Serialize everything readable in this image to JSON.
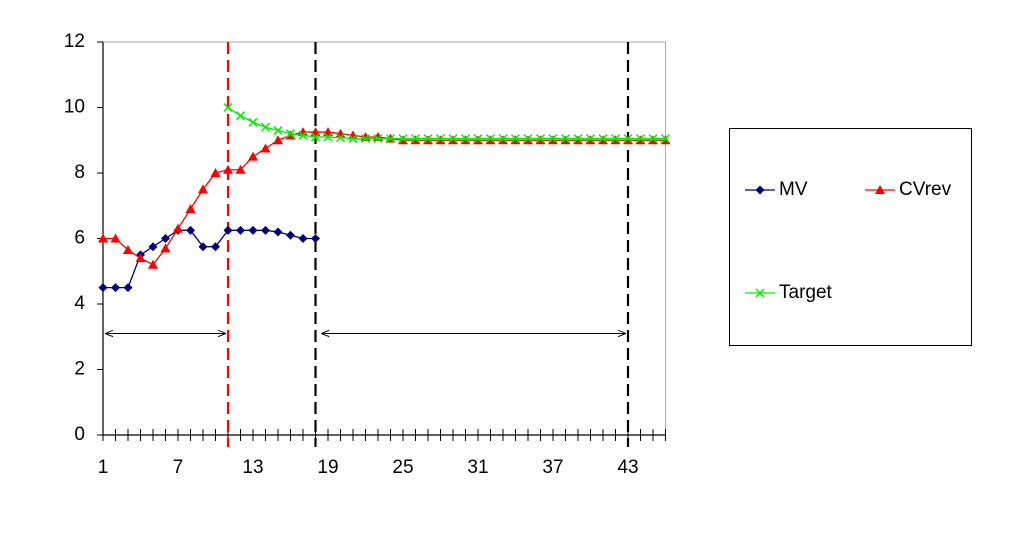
{
  "chart_data": {
    "type": "line",
    "x": [
      1,
      2,
      3,
      4,
      5,
      6,
      7,
      8,
      9,
      10,
      11,
      12,
      13,
      14,
      15,
      16,
      17,
      18,
      19,
      20,
      21,
      22,
      23,
      24,
      25,
      26,
      27,
      28,
      29,
      30,
      31,
      32,
      33,
      34,
      35,
      36,
      37,
      38,
      39,
      40,
      41,
      42,
      43,
      44,
      45,
      46
    ],
    "xlim": [
      1,
      46
    ],
    "xticks": [
      1,
      7,
      13,
      19,
      25,
      31,
      37,
      43
    ],
    "ylim": [
      0,
      12
    ],
    "yticks": [
      0,
      2,
      4,
      6,
      8,
      10,
      12
    ],
    "series": [
      {
        "name": "MV",
        "color": "#000080",
        "marker": "diamond",
        "values": [
          4.5,
          4.5,
          4.5,
          5.5,
          5.75,
          6.0,
          6.25,
          6.25,
          5.75,
          5.75,
          6.25,
          6.25,
          6.25,
          6.25,
          6.2,
          6.1,
          6.0,
          6.0,
          null,
          null,
          null,
          null,
          null,
          null,
          null,
          null,
          null,
          null,
          null,
          null,
          null,
          null,
          null,
          null,
          null,
          null,
          null,
          null,
          null,
          null,
          null,
          null,
          null,
          null,
          null,
          null
        ]
      },
      {
        "name": "CVrev",
        "color": "#ff0000",
        "marker": "triangle",
        "values": [
          6.0,
          6.0,
          5.65,
          5.4,
          5.2,
          5.7,
          6.3,
          6.9,
          7.5,
          8.0,
          8.1,
          8.1,
          8.5,
          8.75,
          9.0,
          9.15,
          9.25,
          9.25,
          9.25,
          9.2,
          9.15,
          9.1,
          9.1,
          9.05,
          9.0,
          9.0,
          9.0,
          9.0,
          9.0,
          9.0,
          9.0,
          9.0,
          9.0,
          9.0,
          9.0,
          9.0,
          9.0,
          9.0,
          9.0,
          9.0,
          9.0,
          9.0,
          9.0,
          9.0,
          9.0,
          9.0
        ]
      },
      {
        "name": "Target",
        "color": "#00ee00",
        "marker": "x",
        "values": [
          null,
          null,
          null,
          null,
          null,
          null,
          null,
          null,
          null,
          null,
          10.0,
          9.75,
          9.55,
          9.4,
          9.3,
          9.2,
          9.15,
          9.1,
          9.1,
          9.08,
          9.05,
          9.05,
          9.05,
          9.05,
          9.05,
          9.05,
          9.05,
          9.05,
          9.05,
          9.05,
          9.05,
          9.05,
          9.05,
          9.05,
          9.05,
          9.05,
          9.05,
          9.05,
          9.05,
          9.05,
          9.05,
          9.05,
          9.05,
          9.05,
          9.05,
          9.05
        ]
      }
    ],
    "vlines": [
      {
        "x": 11,
        "color": "#ff0000"
      },
      {
        "x": 18,
        "color": "#000000"
      },
      {
        "x": 43,
        "color": "#000000"
      }
    ],
    "arrows": [
      {
        "x": [
          1,
          11
        ],
        "y": 3.1
      },
      {
        "x": [
          18.3,
          43
        ],
        "y": 3.1
      }
    ],
    "legend": "right"
  }
}
